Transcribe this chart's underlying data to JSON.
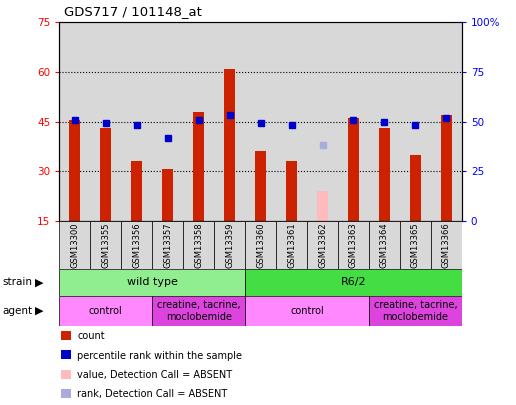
{
  "title": "GDS717 / 101148_at",
  "samples": [
    "GSM13300",
    "GSM13355",
    "GSM13356",
    "GSM13357",
    "GSM13358",
    "GSM13359",
    "GSM13360",
    "GSM13361",
    "GSM13362",
    "GSM13363",
    "GSM13364",
    "GSM13365",
    "GSM13366"
  ],
  "count_values": [
    45.5,
    43.0,
    33.0,
    30.5,
    48.0,
    61.0,
    36.0,
    33.0,
    null,
    46.0,
    43.0,
    35.0,
    47.0
  ],
  "count_absent": [
    null,
    null,
    null,
    null,
    null,
    null,
    null,
    null,
    24.0,
    null,
    null,
    null,
    null
  ],
  "rank_values": [
    45.5,
    44.5,
    44.0,
    40.0,
    45.5,
    47.0,
    44.5,
    44.0,
    null,
    45.5,
    45.0,
    44.0,
    46.0
  ],
  "rank_absent": [
    null,
    null,
    null,
    null,
    null,
    null,
    null,
    null,
    38.0,
    null,
    null,
    null,
    null
  ],
  "ylim_left": [
    15,
    75
  ],
  "ylim_right": [
    0,
    100
  ],
  "yticks_left": [
    15,
    30,
    45,
    60,
    75
  ],
  "yticks_right": [
    0,
    25,
    50,
    75,
    100
  ],
  "ytick_labels_left": [
    "15",
    "30",
    "45",
    "60",
    "75"
  ],
  "ytick_labels_right": [
    "0",
    "25",
    "50",
    "75",
    "100%"
  ],
  "hlines": [
    30,
    45,
    60
  ],
  "strain_groups": [
    {
      "label": "wild type",
      "start": 0,
      "end": 6,
      "color": "#90ee90"
    },
    {
      "label": "R6/2",
      "start": 6,
      "end": 13,
      "color": "#44dd44"
    }
  ],
  "agent_groups": [
    {
      "label": "control",
      "start": 0,
      "end": 3,
      "color": "#ff88ff"
    },
    {
      "label": "creatine, tacrine,\nmoclobemide",
      "start": 3,
      "end": 6,
      "color": "#dd44dd"
    },
    {
      "label": "control",
      "start": 6,
      "end": 10,
      "color": "#ff88ff"
    },
    {
      "label": "creatine, tacrine,\nmoclobemide",
      "start": 10,
      "end": 13,
      "color": "#dd44dd"
    }
  ],
  "bar_color_red": "#cc2200",
  "bar_color_pink": "#ffbbbb",
  "dot_color_blue": "#0000cc",
  "dot_color_lightblue": "#aaaadd",
  "bar_width": 0.35,
  "col_bg_color": "#d8d8d8",
  "plot_bg_color": "#ffffff"
}
